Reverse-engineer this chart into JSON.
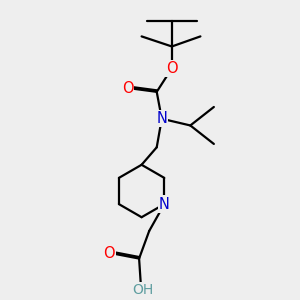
{
  "bg_color": "#eeeeee",
  "atom_colors": {
    "N": "#0000cc",
    "O": "#ff0000",
    "OH": "#5f9ea0"
  },
  "bond_color": "#000000",
  "bond_width": 1.6,
  "font_size": 10.5
}
